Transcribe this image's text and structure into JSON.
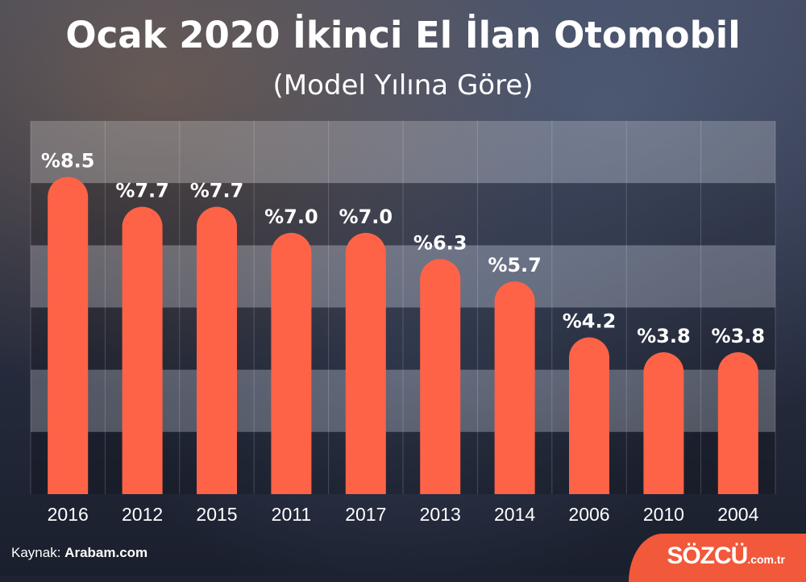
{
  "header": {
    "title": "Ocak 2020 İkinci El İlan Otomobil",
    "subtitle": "(Model Yılına Göre)"
  },
  "footer": {
    "source_prefix": "Kaynak:",
    "source_name": "Arabam.com",
    "logo_text": "SÖZCÜ",
    "logo_domain": ".com.tr"
  },
  "colors": {
    "bar": "#ff6347",
    "text": "#ffffff",
    "logo_bg": "#f2583a"
  },
  "chart_data": {
    "type": "bar",
    "categories": [
      "2016",
      "2012",
      "2015",
      "2011",
      "2017",
      "2013",
      "2014",
      "2006",
      "2010",
      "2004"
    ],
    "values": [
      8.5,
      7.7,
      7.7,
      7.0,
      7.0,
      6.3,
      5.7,
      4.2,
      3.8,
      3.8
    ],
    "labels": [
      "%8.5",
      "%7.7",
      "%7.7",
      "%7.0",
      "%7.0",
      "%6.3",
      "%5.7",
      "%4.2",
      "%3.8",
      "%3.8"
    ],
    "ylim": [
      0,
      10
    ],
    "grid": true
  }
}
